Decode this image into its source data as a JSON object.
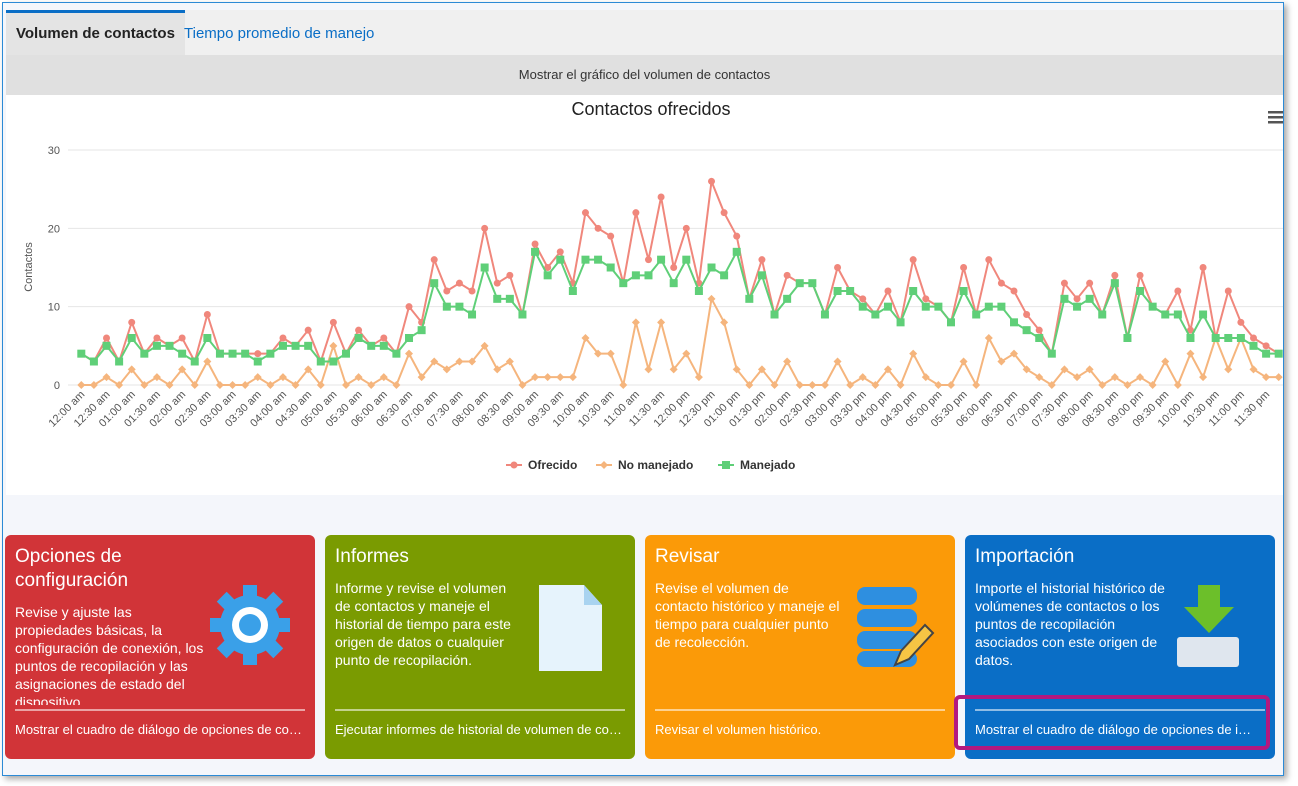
{
  "tabs": [
    "Volumen de contactos",
    "Tiempo promedio de manejo"
  ],
  "chart_toggle": "Mostrar el gráfico del volumen de contactos",
  "chart_data": {
    "type": "line",
    "title": "Contactos ofrecidos",
    "y_label": "Contactos",
    "categories": [
      "12:00 am",
      null,
      "12:30 am",
      null,
      "01:00 am",
      null,
      "01:30 am",
      null,
      "02:00 am",
      null,
      "02:30 am",
      null,
      "03:00 am",
      null,
      "03:30 am",
      null,
      "04:00 am",
      null,
      "04:30 am",
      null,
      "05:00 am",
      null,
      "05:30 am",
      null,
      "06:00 am",
      null,
      "06:30 am",
      null,
      "07:00 am",
      null,
      "07:30 am",
      null,
      "08:00 am",
      null,
      "08:30 am",
      null,
      "09:00 am",
      null,
      "09:30 am",
      null,
      "10:00 am",
      null,
      "10:30 am",
      null,
      "11:00 am",
      null,
      "11:30 am",
      null,
      "12:00 pm",
      null,
      "12:30 pm",
      null,
      "01:00 pm",
      null,
      "01:30 pm",
      null,
      "02:00 pm",
      null,
      "02:30 pm",
      null,
      "03:00 pm",
      null,
      "03:30 pm",
      null,
      "04:00 pm",
      null,
      "04:30 pm",
      null,
      "05:00 pm",
      null,
      "05:30 pm",
      null,
      "06:00 pm",
      null,
      "06:30 pm",
      null,
      "07:00 pm",
      null,
      "07:30 pm",
      null,
      "08:00 pm",
      null,
      "08:30 pm",
      null,
      "09:00 pm",
      null,
      "09:30 pm",
      null,
      "10:00 pm",
      null,
      "10:30 pm",
      null,
      "11:00 pm",
      null,
      "11:30 pm",
      null
    ],
    "series": [
      {
        "name": "Ofrecido",
        "color": "#f0877c",
        "marker": "circle",
        "values": [
          4,
          3,
          6,
          3,
          8,
          4,
          6,
          5,
          6,
          3,
          9,
          4,
          4,
          4,
          4,
          4,
          6,
          5,
          7,
          3,
          8,
          4,
          7,
          5,
          6,
          4,
          10,
          8,
          16,
          12,
          13,
          12,
          20,
          13,
          14,
          9,
          18,
          15,
          17,
          13,
          22,
          20,
          19,
          13,
          22,
          16,
          24,
          15,
          20,
          13,
          26,
          22,
          19,
          11,
          16,
          9,
          14,
          13,
          13,
          9,
          15,
          12,
          11,
          9,
          12,
          8,
          16,
          11,
          10,
          8,
          15,
          9,
          16,
          13,
          12,
          9,
          7,
          4,
          13,
          11,
          13,
          9,
          14,
          6,
          14,
          10,
          9,
          12,
          7,
          15,
          6,
          12,
          8,
          6,
          5,
          4
        ]
      },
      {
        "name": "No manejado",
        "color": "#f5b57d",
        "marker": "diamond",
        "values": [
          0,
          0,
          1,
          0,
          2,
          0,
          1,
          0,
          2,
          0,
          3,
          0,
          0,
          0,
          1,
          0,
          1,
          0,
          2,
          0,
          5,
          0,
          1,
          0,
          1,
          0,
          4,
          1,
          3,
          2,
          3,
          3,
          5,
          2,
          3,
          0,
          1,
          1,
          1,
          1,
          6,
          4,
          4,
          0,
          8,
          2,
          8,
          2,
          4,
          1,
          11,
          8,
          2,
          0,
          2,
          0,
          3,
          0,
          0,
          0,
          3,
          0,
          1,
          0,
          2,
          0,
          4,
          1,
          0,
          0,
          3,
          0,
          6,
          3,
          4,
          2,
          1,
          0,
          2,
          1,
          2,
          0,
          1,
          0,
          1,
          0,
          3,
          0,
          4,
          1,
          6,
          2,
          6,
          2,
          1,
          1
        ]
      },
      {
        "name": "Manejado",
        "color": "#5fcf78",
        "marker": "square",
        "values": [
          4,
          3,
          5,
          3,
          6,
          4,
          5,
          5,
          4,
          3,
          6,
          4,
          4,
          4,
          3,
          4,
          5,
          5,
          5,
          3,
          3,
          4,
          6,
          5,
          5,
          4,
          6,
          7,
          13,
          10,
          10,
          9,
          15,
          11,
          11,
          9,
          17,
          14,
          16,
          12,
          16,
          16,
          15,
          13,
          14,
          14,
          16,
          13,
          16,
          12,
          15,
          14,
          17,
          11,
          14,
          9,
          11,
          13,
          13,
          9,
          12,
          12,
          10,
          9,
          10,
          8,
          12,
          10,
          10,
          8,
          12,
          9,
          10,
          10,
          8,
          7,
          6,
          4,
          11,
          10,
          11,
          9,
          13,
          6,
          12,
          10,
          9,
          9,
          6,
          9,
          6,
          6,
          6,
          5,
          4,
          4
        ]
      }
    ],
    "ylim": [
      0,
      30
    ],
    "yticks": [
      0,
      10,
      20,
      30
    ],
    "grid": true,
    "legend": "bottom"
  },
  "tiles": [
    {
      "title": "Opciones de configuración",
      "text": "Revise y ajuste las propiedades básicas, la configuración de conexión, los puntos de recopilación y las asignaciones de estado del dispositivo",
      "footer": "Mostrar el cuadro de diálogo de opciones de co…"
    },
    {
      "title": "Informes",
      "text": "Informe y revise el volumen de contactos y maneje el historial de tiempo para este origen de datos o cualquier punto de recopilación.",
      "footer": "Ejecutar informes de historial de volumen de co…"
    },
    {
      "title": "Revisar",
      "text": "Revise el volumen de contacto histórico y maneje el tiempo para cualquier punto de recolección.",
      "footer": "Revisar el volumen histórico."
    },
    {
      "title": "Importación",
      "text": "Importe el historial histórico de volúmenes de contactos o los puntos de recopilación asociados con este origen de datos.",
      "footer": "Mostrar el cuadro de diálogo de opciones de i…"
    }
  ]
}
